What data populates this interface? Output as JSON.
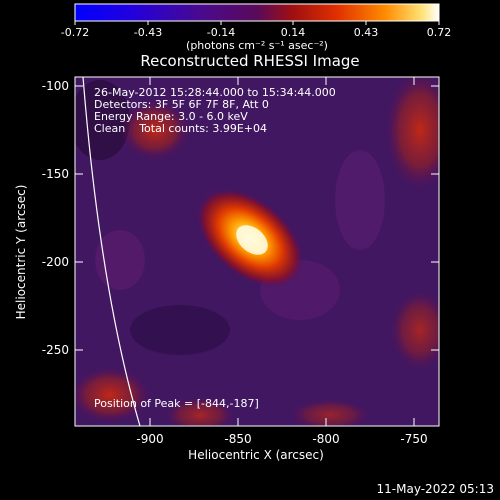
{
  "colorbar": {
    "tick_labels": [
      "-0.72",
      "-0.43",
      "-0.14",
      "0.14",
      "0.43",
      "0.72"
    ],
    "unit_label": "(photons cm⁻² s⁻¹ asec⁻²)"
  },
  "title": "Reconstructed RHESSI Image",
  "info_lines": [
    "26-May-2012 15:28:44.000 to 15:34:44.000",
    "Detectors: 3F 5F 6F 7F 8F, Att 0",
    "Energy Range: 3.0 - 6.0 keV",
    "Clean    Total counts: 3.99E+04"
  ],
  "peak_text": "Position of Peak = [-844,-187]",
  "axes": {
    "ylabel": "Heliocentric Y (arcsec)",
    "xlabel": "Heliocentric X (arcsec)",
    "y_ticks": [
      "-100",
      "-150",
      "-200",
      "-250"
    ],
    "x_ticks": [
      "-900",
      "-850",
      "-800",
      "-750"
    ]
  },
  "timestamp": "11-May-2022 05:13",
  "colors": {
    "background": "#000000",
    "frame": "#ffffff",
    "limb": "#ffffff"
  }
}
